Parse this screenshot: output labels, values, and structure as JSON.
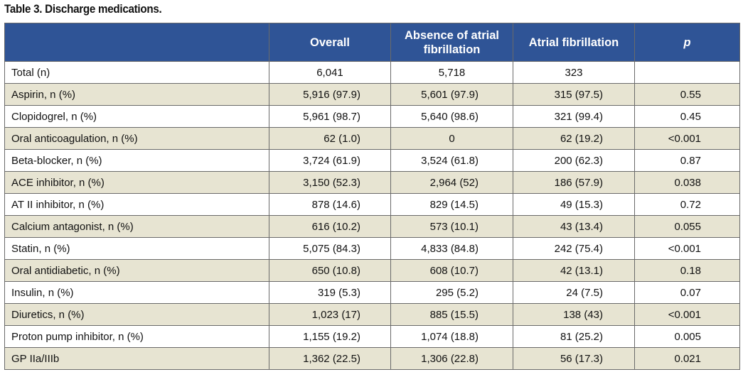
{
  "caption": "Table 3. Discharge medications.",
  "headers": [
    "",
    "Overall",
    "Absence of atrial fibrillation",
    "Atrial fibrillation",
    "p"
  ],
  "rows": [
    {
      "label": "Total (n)",
      "overall": "6,041",
      "absence": "5,718",
      "af": "323",
      "p": ""
    },
    {
      "label": "Aspirin, n (%)",
      "overall": "5,916 (97.9)",
      "absence": "5,601 (97.9)",
      "af": "315 (97.5)",
      "p": "0.55"
    },
    {
      "label": "Clopidogrel, n (%)",
      "overall": "5,961 (98.7)",
      "absence": "5,640 (98.6)",
      "af": "321 (99.4)",
      "p": "0.45"
    },
    {
      "label": "Oral anticoagulation, n (%)",
      "overall": "62 (1.0)",
      "absence": "0",
      "af": "62 (19.2)",
      "p": "<0.001"
    },
    {
      "label": "Beta-blocker, n (%)",
      "overall": "3,724 (61.9)",
      "absence": "3,524 (61.8)",
      "af": "200 (62.3)",
      "p": "0.87"
    },
    {
      "label": "ACE inhibitor, n (%)",
      "overall": "3,150 (52.3)",
      "absence": "2,964 (52)",
      "af": "186 (57.9)",
      "p": "0.038"
    },
    {
      "label": "AT II inhibitor, n (%)",
      "overall": "878 (14.6)",
      "absence": "829 (14.5)",
      "af": "49 (15.3)",
      "p": "0.72"
    },
    {
      "label": "Calcium antagonist, n (%)",
      "overall": "616 (10.2)",
      "absence": "573 (10.1)",
      "af": "43 (13.4)",
      "p": "0.055"
    },
    {
      "label": "Statin, n (%)",
      "overall": "5,075 (84.3)",
      "absence": "4,833 (84.8)",
      "af": "242 (75.4)",
      "p": "<0.001"
    },
    {
      "label": "Oral antidiabetic, n (%)",
      "overall": "650 (10.8)",
      "absence": "608 (10.7)",
      "af": "42 (13.1)",
      "p": "0.18"
    },
    {
      "label": "Insulin, n (%)",
      "overall": "319 (5.3)",
      "absence": "295 (5.2)",
      "af": "24 (7.5)",
      "p": "0.07"
    },
    {
      "label": "Diuretics, n (%)",
      "overall": "1,023 (17)",
      "absence": "885 (15.5)",
      "af": "138 (43)",
      "p": "<0.001"
    },
    {
      "label": "Proton pump inhibitor, n (%)",
      "overall": "1,155 (19.2)",
      "absence": "1,074 (18.8)",
      "af": "81 (25.2)",
      "p": "0.005"
    },
    {
      "label": "GP IIa/IIIb",
      "overall": "1,362 (22.5)",
      "absence": "1,306 (22.8)",
      "af": "56 (17.3)",
      "p": "0.021"
    }
  ]
}
